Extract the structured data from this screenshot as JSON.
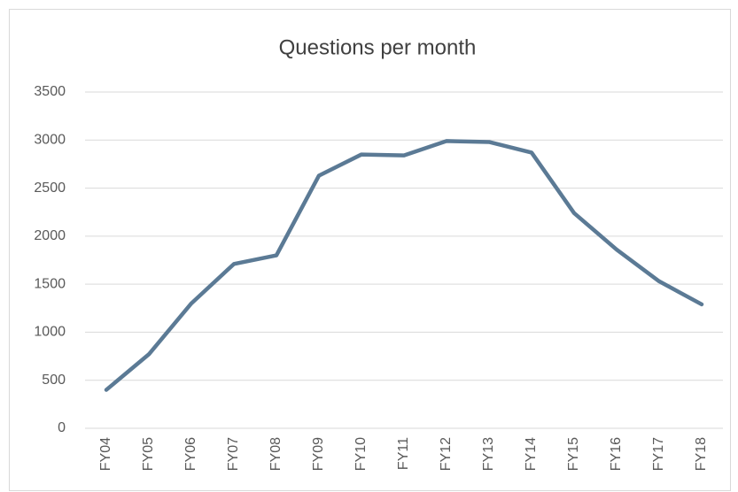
{
  "chart_data": {
    "type": "line",
    "title": "Questions per month",
    "categories": [
      "FY04",
      "FY05",
      "FY06",
      "FY07",
      "FY08",
      "FY09",
      "FY10",
      "FY11",
      "FY12",
      "FY13",
      "FY14",
      "FY15",
      "FY16",
      "FY17",
      "FY18"
    ],
    "values": [
      400,
      770,
      1300,
      1710,
      1800,
      2630,
      2850,
      2840,
      2990,
      2980,
      2870,
      2240,
      1860,
      1530,
      1290
    ],
    "color": "#5b7a95",
    "ylim": [
      0,
      3500
    ],
    "yticks": [
      0,
      500,
      1000,
      1500,
      2000,
      2500,
      3000,
      3500
    ],
    "grid": true
  }
}
